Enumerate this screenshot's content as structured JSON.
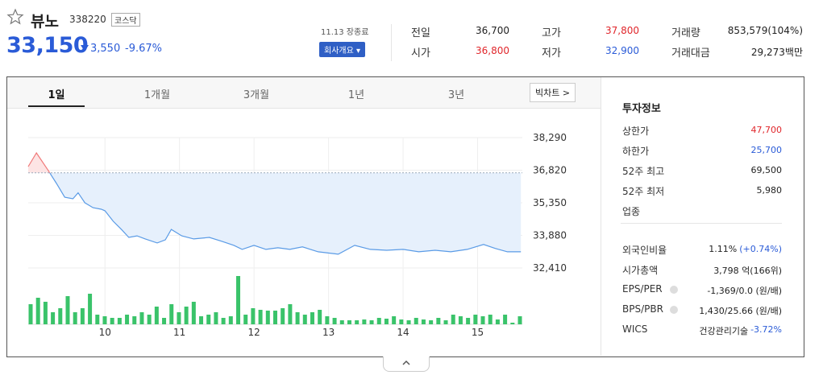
{
  "header": {
    "name": "뷰노",
    "code": "338220",
    "market": "코스닥",
    "price": "33,150",
    "change": "3,550",
    "rate": "-9.67%",
    "date": "11.13 장종료",
    "company_button": "회사개요"
  },
  "stats": [
    {
      "label": "전일",
      "value": "36,700",
      "color": "#222"
    },
    {
      "label": "고가",
      "value": "37,800",
      "color": "#e0262b"
    },
    {
      "label": "거래량",
      "value": "853,579(104%)",
      "color": "#222"
    },
    {
      "label": "시가",
      "value": "36,800",
      "color": "#e0262b"
    },
    {
      "label": "저가",
      "value": "32,900",
      "color": "#2a5bd7"
    },
    {
      "label": "거래대금",
      "value": "29,273백만",
      "color": "#222"
    }
  ],
  "tabs": [
    "1일",
    "1개월",
    "3개월",
    "1년",
    "3년"
  ],
  "big_chart": "빅차트",
  "chart_data": {
    "type": "line",
    "x": [
      8.97,
      9.08,
      9.24,
      9.35,
      9.46,
      9.57,
      9.64,
      9.73,
      9.84,
      9.95,
      10.0,
      10.11,
      10.22,
      10.32,
      10.43,
      10.54,
      10.7,
      10.81,
      10.89,
      11.03,
      11.19,
      11.4,
      11.57,
      11.73,
      11.84,
      12.0,
      12.16,
      12.32,
      12.48,
      12.65,
      12.86,
      13.13,
      13.35,
      13.56,
      13.78,
      14.0,
      14.21,
      14.43,
      14.64,
      14.86,
      15.08,
      15.24,
      15.4,
      15.58
    ],
    "values": [
      36983,
      37600,
      36800,
      36220,
      35600,
      35530,
      35800,
      35350,
      35130,
      35060,
      34990,
      34520,
      34150,
      33790,
      33860,
      33720,
      33540,
      33680,
      34150,
      33860,
      33720,
      33790,
      33610,
      33430,
      33250,
      33430,
      33250,
      33320,
      33250,
      33360,
      33140,
      33030,
      33430,
      33250,
      33210,
      33250,
      33140,
      33210,
      33140,
      33250,
      33470,
      33290,
      33140,
      33140
    ],
    "color": "#5a9be6",
    "up_color": "#f07878",
    "baseline": 36700,
    "xlim": [
      8.97,
      15.6
    ],
    "xticks": [
      10,
      11,
      12,
      13,
      14,
      15
    ],
    "ylim": [
      32410,
      38290
    ],
    "yticks": [
      {
        "value": 38290,
        "label": "38,290"
      },
      {
        "value": 36820,
        "label": "36,820"
      },
      {
        "value": 35350,
        "label": "35,350"
      },
      {
        "value": 33880,
        "label": "33,880"
      },
      {
        "value": 32410,
        "label": "32,410"
      }
    ],
    "grid": true,
    "volume": {
      "type": "bar",
      "color": "#3ac36a",
      "ylim": [
        0,
        60
      ],
      "values": [
        25,
        33,
        28,
        15,
        20,
        35,
        15,
        20,
        38,
        12,
        10,
        8,
        8,
        12,
        10,
        15,
        12,
        22,
        8,
        25,
        15,
        22,
        28,
        10,
        12,
        15,
        8,
        10,
        60,
        12,
        20,
        18,
        17,
        17,
        20,
        25,
        15,
        12,
        15,
        18,
        10,
        8,
        5,
        5,
        5,
        6,
        5,
        8,
        7,
        10,
        6,
        5,
        8,
        6,
        5,
        8,
        5,
        12,
        10,
        8,
        12,
        10,
        12,
        6,
        12,
        2,
        10
      ]
    }
  },
  "info": {
    "title": "투자정보",
    "rows": [
      {
        "label": "상한가",
        "value": "47,700",
        "color": "#e0262b"
      },
      {
        "label": "하한가",
        "value": "25,700",
        "color": "#2a5bd7"
      },
      {
        "label": "52주 최고",
        "value": "69,500",
        "color": "#222"
      },
      {
        "label": "52주 최저",
        "value": "5,980",
        "color": "#222"
      },
      {
        "label": "업종",
        "value": "",
        "color": "#222"
      },
      {
        "label": "외국인비율",
        "value": "1.11%",
        "note": "(+0.74%)",
        "color": "#222"
      },
      {
        "label": "시가총액",
        "value": "3,798 억(166위)",
        "color": "#222"
      },
      {
        "label": "EPS/PER",
        "value": "-1,369/0.0 (원/배)",
        "color": "#222"
      },
      {
        "label": "BPS/PBR",
        "value": "1,430/25.66 (원/배)",
        "color": "#222"
      },
      {
        "label": "WICS",
        "value": "건강관리기술",
        "note": "-3.72%",
        "color": "#222"
      }
    ]
  }
}
